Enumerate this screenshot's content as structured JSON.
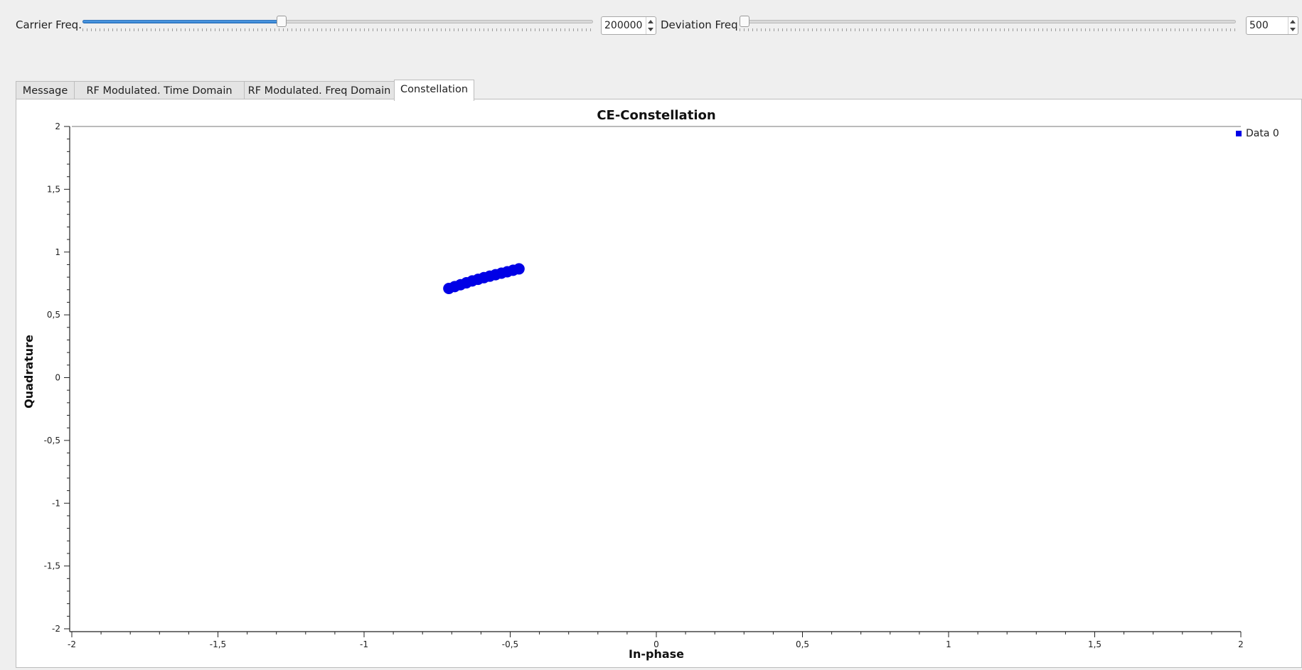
{
  "controls": {
    "carrier": {
      "label": "Carrier Freq.",
      "value": "200000",
      "slider_level": 0.39
    },
    "deviation": {
      "label": "Deviation Freq",
      "value": "500",
      "slider_level": 0.0
    }
  },
  "tabs": [
    {
      "label": "Message",
      "active": false
    },
    {
      "label": "RF Modulated. Time Domain",
      "active": false
    },
    {
      "label": "RF Modulated. Freq Domain",
      "active": false
    },
    {
      "label": "Constellation",
      "active": true
    }
  ],
  "chart_data": {
    "type": "scatter",
    "title": "CE-Constellation",
    "xlabel": "In-phase",
    "ylabel": "Quadrature",
    "xlim": [
      -2,
      2
    ],
    "ylim": [
      -2,
      2
    ],
    "x_ticks": [
      "-2",
      "-1,5",
      "-1",
      "-0,5",
      "0",
      "0,5",
      "1",
      "1,5",
      "2"
    ],
    "y_ticks": [
      "2",
      "1,5",
      "1",
      "0,5",
      "0",
      "-0,5",
      "-1",
      "-1,5",
      "-2"
    ],
    "grid": false,
    "legend_position": "top-right",
    "series": [
      {
        "name": "Data 0",
        "color": "#0000e6",
        "points": [
          [
            -0.71,
            0.71
          ],
          [
            -0.69,
            0.725
          ],
          [
            -0.67,
            0.74
          ],
          [
            -0.65,
            0.755
          ],
          [
            -0.63,
            0.77
          ],
          [
            -0.61,
            0.783
          ],
          [
            -0.59,
            0.796
          ],
          [
            -0.57,
            0.808
          ],
          [
            -0.55,
            0.82
          ],
          [
            -0.53,
            0.832
          ],
          [
            -0.51,
            0.843
          ],
          [
            -0.49,
            0.855
          ],
          [
            -0.47,
            0.866
          ]
        ]
      }
    ]
  }
}
